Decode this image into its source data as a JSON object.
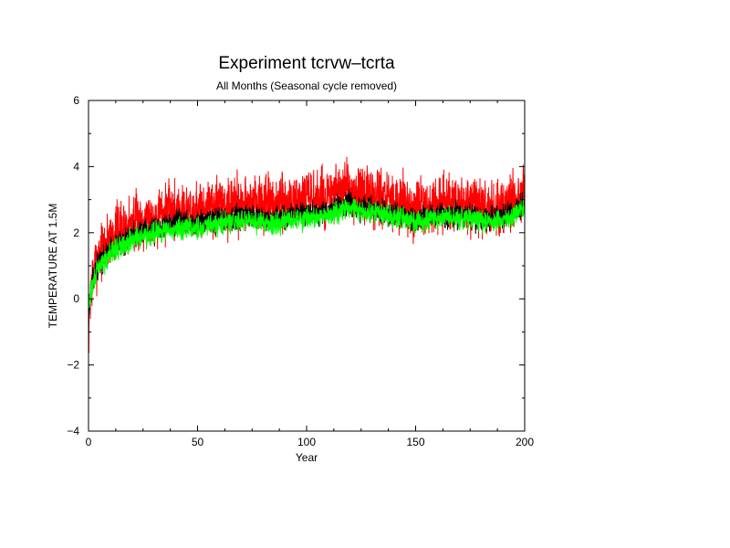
{
  "chart_data": {
    "type": "line",
    "title": "Experiment tcrvw–tcrta",
    "subtitle": "All Months (Seasonal cycle removed)",
    "xlabel": "Year",
    "ylabel": "TEMPERATURE AT 1.5M",
    "xlim": [
      0,
      200
    ],
    "ylim": [
      -4,
      6
    ],
    "x_ticks": [
      0,
      50,
      100,
      150,
      200
    ],
    "y_ticks": [
      -4,
      -2,
      0,
      2,
      4,
      6
    ],
    "grid": false,
    "legend": "none",
    "x": [
      0,
      1,
      2,
      3,
      5,
      8,
      10,
      15,
      20,
      25,
      30,
      35,
      40,
      45,
      50,
      55,
      60,
      65,
      70,
      75,
      80,
      85,
      90,
      95,
      100,
      105,
      110,
      115,
      120,
      125,
      130,
      135,
      140,
      145,
      150,
      155,
      160,
      165,
      170,
      175,
      180,
      185,
      190,
      195,
      200
    ],
    "series": [
      {
        "color": "#ff0000",
        "values": [
          -1.0,
          0.3,
          0.7,
          1.0,
          1.4,
          1.7,
          1.9,
          2.1,
          2.3,
          2.4,
          2.5,
          2.6,
          2.7,
          2.7,
          2.7,
          2.75,
          2.8,
          2.85,
          2.9,
          2.9,
          2.85,
          2.8,
          2.9,
          3.0,
          3.0,
          3.0,
          3.05,
          3.2,
          3.3,
          3.1,
          3.1,
          3.0,
          2.9,
          2.9,
          2.7,
          2.8,
          2.8,
          2.85,
          2.9,
          2.8,
          2.7,
          2.7,
          2.8,
          3.0,
          3.3
        ]
      },
      {
        "color": "#000000",
        "values": [
          -0.5,
          0.2,
          0.5,
          0.8,
          1.1,
          1.3,
          1.5,
          1.7,
          1.9,
          2.0,
          2.1,
          2.2,
          2.3,
          2.3,
          2.3,
          2.35,
          2.4,
          2.45,
          2.5,
          2.5,
          2.45,
          2.4,
          2.5,
          2.55,
          2.6,
          2.6,
          2.65,
          2.8,
          2.85,
          2.7,
          2.7,
          2.65,
          2.55,
          2.55,
          2.4,
          2.5,
          2.5,
          2.55,
          2.55,
          2.5,
          2.45,
          2.45,
          2.5,
          2.65,
          2.8
        ]
      },
      {
        "color": "#00ff00",
        "values": [
          -0.3,
          0.2,
          0.4,
          0.7,
          1.0,
          1.2,
          1.4,
          1.6,
          1.8,
          1.9,
          2.0,
          2.05,
          2.1,
          2.15,
          2.15,
          2.2,
          2.25,
          2.3,
          2.35,
          2.35,
          2.3,
          2.3,
          2.35,
          2.4,
          2.45,
          2.45,
          2.5,
          2.7,
          2.75,
          2.6,
          2.6,
          2.55,
          2.45,
          2.45,
          2.3,
          2.4,
          2.4,
          2.45,
          2.45,
          2.4,
          2.35,
          2.35,
          2.4,
          2.55,
          2.7
        ]
      }
    ]
  }
}
